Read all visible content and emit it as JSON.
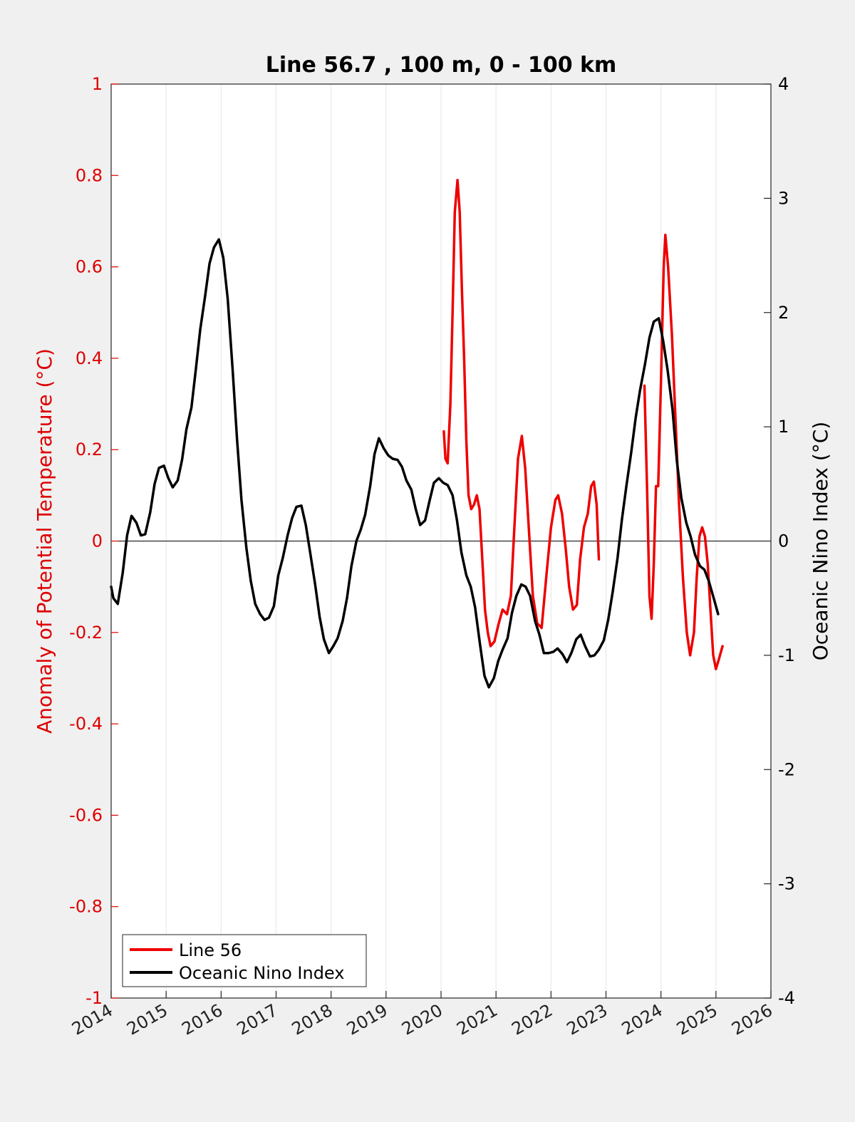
{
  "chart_data": {
    "type": "line",
    "title": "Line 56.7 , 100 m, 0 - 100 km",
    "xlabel": "",
    "ylabel": "Anomaly of Potential Temperature (°C)",
    "y2label": "Oceanic Nino Index (°C)",
    "xlim": [
      2014,
      2026
    ],
    "ylim": [
      -1,
      1
    ],
    "y2lim": [
      -4,
      4
    ],
    "x_ticks": [
      "2014",
      "2015",
      "2016",
      "2017",
      "2018",
      "2019",
      "2020",
      "2021",
      "2022",
      "2023",
      "2024",
      "2025",
      "2026"
    ],
    "y_ticks": [
      "-1",
      "-0.8",
      "-0.6",
      "-0.4",
      "-0.2",
      "0",
      "0.2",
      "0.4",
      "0.6",
      "0.8",
      "1"
    ],
    "y2_ticks": [
      "-4",
      "-3",
      "-2",
      "-1",
      "0",
      "1",
      "2",
      "3",
      "4"
    ],
    "grid": "vertical",
    "zero_line": true,
    "legend_position": "bottom-left",
    "colors": {
      "line56": "#ee0000",
      "oni": "#000000",
      "left_axis": "#dd0000"
    },
    "series": [
      {
        "name": "Line 56",
        "axis": "left",
        "color": "#ee0000",
        "segments": [
          [
            [
              2020.05,
              0.24
            ],
            [
              2020.08,
              0.18
            ],
            [
              2020.12,
              0.17
            ],
            [
              2020.17,
              0.3
            ],
            [
              2020.21,
              0.5
            ],
            [
              2020.25,
              0.72
            ],
            [
              2020.3,
              0.79
            ],
            [
              2020.34,
              0.72
            ],
            [
              2020.38,
              0.55
            ],
            [
              2020.42,
              0.4
            ],
            [
              2020.46,
              0.22
            ],
            [
              2020.5,
              0.1
            ],
            [
              2020.55,
              0.07
            ],
            [
              2020.6,
              0.08
            ],
            [
              2020.65,
              0.1
            ],
            [
              2020.7,
              0.07
            ],
            [
              2020.75,
              -0.04
            ],
            [
              2020.8,
              -0.15
            ],
            [
              2020.85,
              -0.2
            ],
            [
              2020.9,
              -0.23
            ],
            [
              2020.97,
              -0.22
            ],
            [
              2021.05,
              -0.18
            ],
            [
              2021.12,
              -0.15
            ],
            [
              2021.2,
              -0.16
            ],
            [
              2021.27,
              -0.12
            ],
            [
              2021.33,
              0.02
            ],
            [
              2021.4,
              0.18
            ],
            [
              2021.47,
              0.23
            ],
            [
              2021.53,
              0.16
            ],
            [
              2021.6,
              0.02
            ],
            [
              2021.67,
              -0.12
            ],
            [
              2021.75,
              -0.18
            ],
            [
              2021.83,
              -0.19
            ],
            [
              2021.92,
              -0.07
            ],
            [
              2022.0,
              0.03
            ],
            [
              2022.08,
              0.09
            ],
            [
              2022.13,
              0.1
            ],
            [
              2022.2,
              0.06
            ],
            [
              2022.27,
              -0.02
            ],
            [
              2022.33,
              -0.1
            ],
            [
              2022.4,
              -0.15
            ],
            [
              2022.47,
              -0.14
            ],
            [
              2022.53,
              -0.04
            ],
            [
              2022.6,
              0.03
            ],
            [
              2022.67,
              0.06
            ],
            [
              2022.73,
              0.12
            ],
            [
              2022.78,
              0.13
            ],
            [
              2022.83,
              0.08
            ],
            [
              2022.87,
              -0.04
            ]
          ],
          [
            [
              2023.7,
              0.34
            ],
            [
              2023.75,
              0.1
            ],
            [
              2023.79,
              -0.12
            ],
            [
              2023.83,
              -0.17
            ],
            [
              2023.87,
              -0.05
            ],
            [
              2023.91,
              0.12
            ],
            [
              2023.95,
              0.12
            ],
            [
              2024.0,
              0.35
            ],
            [
              2024.05,
              0.6
            ],
            [
              2024.08,
              0.67
            ],
            [
              2024.13,
              0.6
            ],
            [
              2024.2,
              0.45
            ],
            [
              2024.27,
              0.25
            ],
            [
              2024.33,
              0.08
            ],
            [
              2024.4,
              -0.08
            ],
            [
              2024.47,
              -0.2
            ],
            [
              2024.53,
              -0.25
            ],
            [
              2024.6,
              -0.2
            ],
            [
              2024.65,
              -0.08
            ],
            [
              2024.7,
              0.01
            ],
            [
              2024.75,
              0.03
            ],
            [
              2024.8,
              0.01
            ],
            [
              2024.85,
              -0.05
            ],
            [
              2024.9,
              -0.15
            ],
            [
              2024.95,
              -0.25
            ],
            [
              2025.0,
              -0.28
            ],
            [
              2025.05,
              -0.26
            ],
            [
              2025.12,
              -0.23
            ]
          ]
        ]
      },
      {
        "name": "Oceanic Nino Index",
        "axis": "right",
        "color": "#000000",
        "segments": [
          [
            [
              2014.0,
              -0.4
            ],
            [
              2014.04,
              -0.5
            ],
            [
              2014.12,
              -0.55
            ],
            [
              2014.21,
              -0.28
            ],
            [
              2014.29,
              0.05
            ],
            [
              2014.37,
              0.22
            ],
            [
              2014.46,
              0.16
            ],
            [
              2014.54,
              0.05
            ],
            [
              2014.62,
              0.06
            ],
            [
              2014.71,
              0.25
            ],
            [
              2014.79,
              0.5
            ],
            [
              2014.87,
              0.64
            ],
            [
              2014.96,
              0.66
            ],
            [
              2015.04,
              0.55
            ],
            [
              2015.12,
              0.47
            ],
            [
              2015.21,
              0.53
            ],
            [
              2015.29,
              0.71
            ],
            [
              2015.37,
              0.98
            ],
            [
              2015.46,
              1.17
            ],
            [
              2015.54,
              1.5
            ],
            [
              2015.62,
              1.85
            ],
            [
              2015.71,
              2.15
            ],
            [
              2015.79,
              2.43
            ],
            [
              2015.87,
              2.57
            ],
            [
              2015.96,
              2.64
            ],
            [
              2016.04,
              2.48
            ],
            [
              2016.12,
              2.12
            ],
            [
              2016.21,
              1.5
            ],
            [
              2016.29,
              0.89
            ],
            [
              2016.37,
              0.36
            ],
            [
              2016.46,
              -0.06
            ],
            [
              2016.54,
              -0.35
            ],
            [
              2016.62,
              -0.55
            ],
            [
              2016.71,
              -0.64
            ],
            [
              2016.79,
              -0.69
            ],
            [
              2016.87,
              -0.67
            ],
            [
              2016.96,
              -0.57
            ],
            [
              2017.04,
              -0.3
            ],
            [
              2017.12,
              -0.15
            ],
            [
              2017.21,
              0.05
            ],
            [
              2017.29,
              0.2
            ],
            [
              2017.37,
              0.3
            ],
            [
              2017.46,
              0.31
            ],
            [
              2017.54,
              0.14
            ],
            [
              2017.62,
              -0.1
            ],
            [
              2017.71,
              -0.38
            ],
            [
              2017.79,
              -0.66
            ],
            [
              2017.87,
              -0.86
            ],
            [
              2017.96,
              -0.98
            ],
            [
              2018.04,
              -0.92
            ],
            [
              2018.12,
              -0.85
            ],
            [
              2018.21,
              -0.7
            ],
            [
              2018.29,
              -0.5
            ],
            [
              2018.37,
              -0.22
            ],
            [
              2018.46,
              0.0
            ],
            [
              2018.54,
              0.1
            ],
            [
              2018.62,
              0.23
            ],
            [
              2018.71,
              0.48
            ],
            [
              2018.79,
              0.76
            ],
            [
              2018.87,
              0.9
            ],
            [
              2018.96,
              0.81
            ],
            [
              2019.04,
              0.75
            ],
            [
              2019.12,
              0.72
            ],
            [
              2019.21,
              0.71
            ],
            [
              2019.29,
              0.65
            ],
            [
              2019.37,
              0.53
            ],
            [
              2019.46,
              0.45
            ],
            [
              2019.54,
              0.28
            ],
            [
              2019.62,
              0.14
            ],
            [
              2019.71,
              0.18
            ],
            [
              2019.79,
              0.35
            ],
            [
              2019.87,
              0.51
            ],
            [
              2019.96,
              0.55
            ],
            [
              2020.04,
              0.51
            ],
            [
              2020.12,
              0.49
            ],
            [
              2020.21,
              0.4
            ],
            [
              2020.29,
              0.18
            ],
            [
              2020.37,
              -0.1
            ],
            [
              2020.46,
              -0.3
            ],
            [
              2020.54,
              -0.4
            ],
            [
              2020.62,
              -0.58
            ],
            [
              2020.71,
              -0.91
            ],
            [
              2020.79,
              -1.18
            ],
            [
              2020.87,
              -1.28
            ],
            [
              2020.96,
              -1.2
            ],
            [
              2021.04,
              -1.05
            ],
            [
              2021.12,
              -0.95
            ],
            [
              2021.21,
              -0.85
            ],
            [
              2021.29,
              -0.63
            ],
            [
              2021.37,
              -0.48
            ],
            [
              2021.46,
              -0.38
            ],
            [
              2021.54,
              -0.4
            ],
            [
              2021.62,
              -0.48
            ],
            [
              2021.71,
              -0.7
            ],
            [
              2021.79,
              -0.82
            ],
            [
              2021.87,
              -0.98
            ],
            [
              2021.96,
              -0.98
            ],
            [
              2022.04,
              -0.97
            ],
            [
              2022.12,
              -0.94
            ],
            [
              2022.21,
              -0.99
            ],
            [
              2022.29,
              -1.06
            ],
            [
              2022.37,
              -0.98
            ],
            [
              2022.46,
              -0.86
            ],
            [
              2022.54,
              -0.82
            ],
            [
              2022.62,
              -0.92
            ],
            [
              2022.71,
              -1.01
            ],
            [
              2022.79,
              -1.0
            ],
            [
              2022.87,
              -0.95
            ],
            [
              2022.96,
              -0.87
            ],
            [
              2023.04,
              -0.69
            ],
            [
              2023.12,
              -0.45
            ],
            [
              2023.21,
              -0.15
            ],
            [
              2023.29,
              0.19
            ],
            [
              2023.37,
              0.48
            ],
            [
              2023.46,
              0.78
            ],
            [
              2023.54,
              1.08
            ],
            [
              2023.62,
              1.32
            ],
            [
              2023.71,
              1.55
            ],
            [
              2023.79,
              1.78
            ],
            [
              2023.87,
              1.92
            ],
            [
              2023.96,
              1.95
            ],
            [
              2024.04,
              1.75
            ],
            [
              2024.12,
              1.5
            ],
            [
              2024.21,
              1.15
            ],
            [
              2024.29,
              0.7
            ],
            [
              2024.37,
              0.38
            ],
            [
              2024.46,
              0.16
            ],
            [
              2024.54,
              0.04
            ],
            [
              2024.62,
              -0.12
            ],
            [
              2024.71,
              -0.22
            ],
            [
              2024.79,
              -0.25
            ],
            [
              2024.87,
              -0.35
            ],
            [
              2024.96,
              -0.5
            ],
            [
              2025.04,
              -0.64
            ]
          ]
        ]
      }
    ]
  }
}
